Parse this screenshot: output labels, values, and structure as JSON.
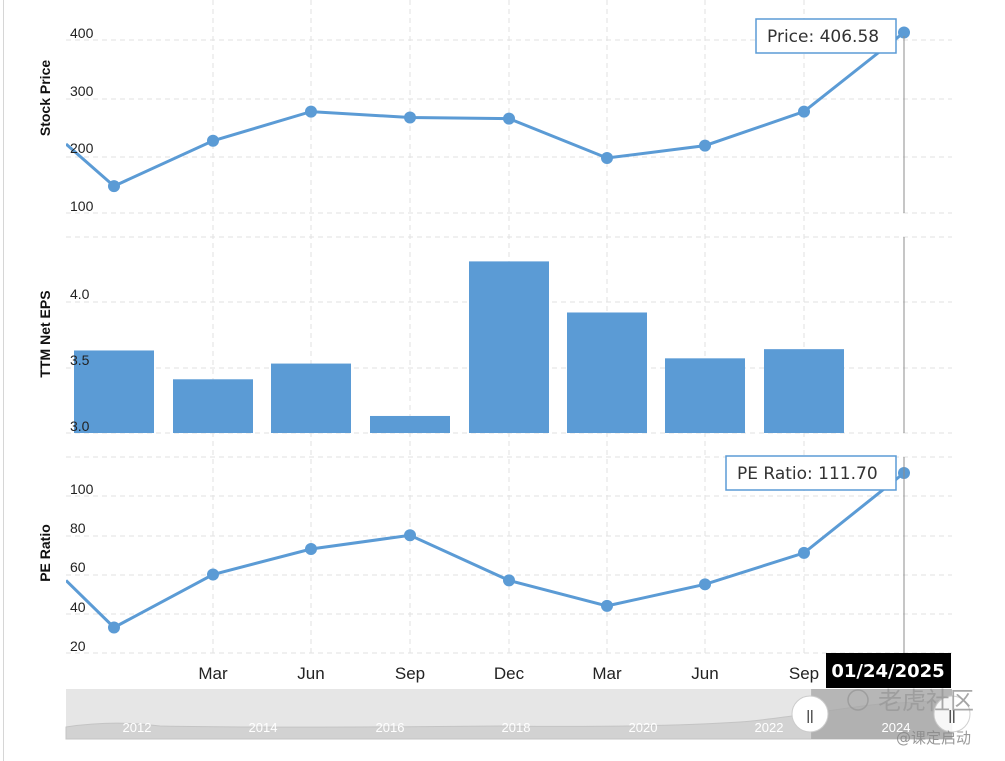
{
  "chart_data": [
    {
      "type": "line",
      "ylabel": "Stock Price",
      "yticks": [
        "100",
        "200",
        "300",
        "400"
      ],
      "ylim": [
        75,
        440
      ],
      "x": [
        "",
        "",
        "Mar",
        "Jun",
        "Sep",
        "Dec",
        "Mar",
        "Jun",
        "Sep",
        ""
      ],
      "values": [
        200,
        122,
        206,
        260,
        249,
        247,
        174,
        197,
        260,
        406.58
      ],
      "color": "#5b9bd5",
      "tooltip": "Price: 406.58"
    },
    {
      "type": "bar",
      "ylabel": "TTM Net EPS",
      "yticks": [
        "3.0",
        "3.5",
        "4.0"
      ],
      "ylim": [
        3.0,
        4.32
      ],
      "values": [
        3.63,
        3.41,
        3.53,
        3.13,
        4.31,
        3.92,
        3.57,
        3.64
      ],
      "color": "#5b9bd5"
    },
    {
      "type": "line",
      "ylabel": "PE Ratio",
      "yticks": [
        "20",
        "40",
        "60",
        "80",
        "100"
      ],
      "ylim": [
        18,
        112
      ],
      "x": [
        "",
        "",
        "Mar",
        "Jun",
        "Sep",
        "Dec",
        "Mar",
        "Jun",
        "Sep",
        ""
      ],
      "values": [
        57,
        33,
        60,
        73,
        80,
        57,
        44,
        55,
        71,
        111.7
      ],
      "color": "#5b9bd5",
      "tooltip": "PE Ratio: 111.70"
    }
  ],
  "x_axis": {
    "labels": [
      "Mar",
      "Jun",
      "Sep",
      "Dec",
      "Mar",
      "Jun",
      "Sep"
    ],
    "selected_date": "01/24/2025"
  },
  "navigator": {
    "years": [
      "2012",
      "2014",
      "2016",
      "2018",
      "2020",
      "2022",
      "2024"
    ],
    "left_handle": "||",
    "right_handle": "||",
    "range_start_fraction": 0.92,
    "range_end_fraction": 1.0
  },
  "watermark": {
    "brand": "老虎社区",
    "handle": "@课定启动"
  },
  "colors": {
    "series": "#5b9bd5",
    "grid": "#e2e2e2",
    "crosshair": "#8c8c8c",
    "date_bg": "#000000",
    "navigator_bg": "#e6e6e6",
    "navigator_range": "#a5a5a5"
  }
}
